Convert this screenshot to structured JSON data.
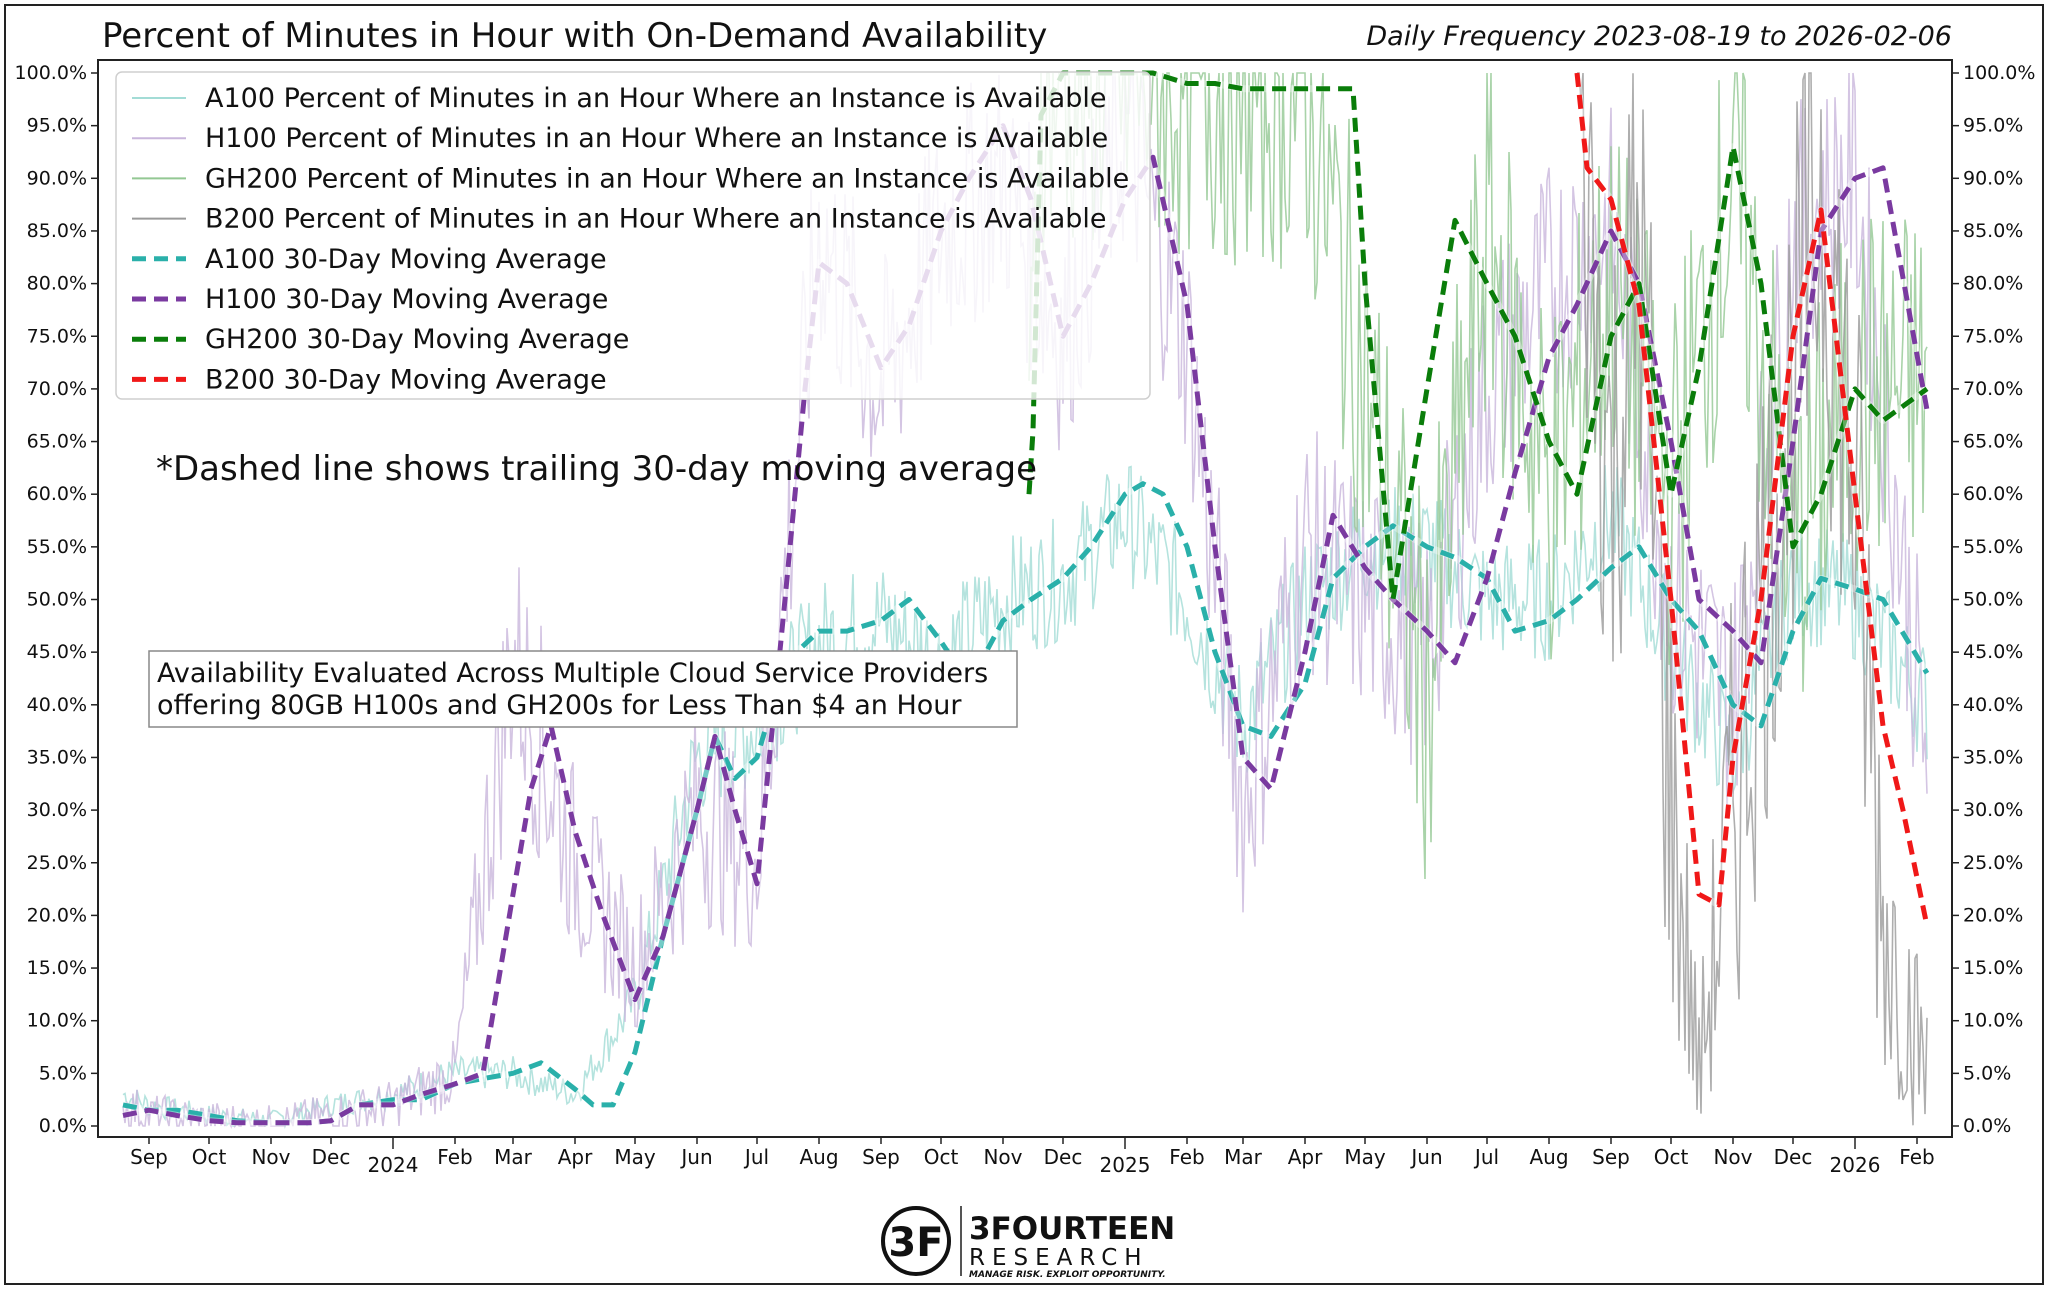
{
  "chart_data": {
    "type": "line",
    "title": "Percent of Minutes in Hour with On-Demand Availability",
    "subtitle": "Daily Frequency 2023-08-19 to 2026-02-06",
    "x_start": "2023-08-19",
    "x_end": "2026-02-06",
    "ylim": [
      0,
      100
    ],
    "grid": false,
    "legend_position": "top-left",
    "y_ticks": [
      "0.0%",
      "5.0%",
      "10.0%",
      "15.0%",
      "20.0%",
      "25.0%",
      "30.0%",
      "35.0%",
      "40.0%",
      "45.0%",
      "50.0%",
      "55.0%",
      "60.0%",
      "65.0%",
      "70.0%",
      "75.0%",
      "80.0%",
      "85.0%",
      "90.0%",
      "95.0%",
      "100.0%"
    ],
    "x_ticks": [
      {
        "label": "Sep",
        "date": "2023-09-01"
      },
      {
        "label": "Oct",
        "date": "2023-10-01"
      },
      {
        "label": "Nov",
        "date": "2023-11-01"
      },
      {
        "label": "Dec",
        "date": "2023-12-01"
      },
      {
        "label": "2024",
        "date": "2024-01-01",
        "major": true
      },
      {
        "label": "Feb",
        "date": "2024-02-01"
      },
      {
        "label": "Mar",
        "date": "2024-03-01"
      },
      {
        "label": "Apr",
        "date": "2024-04-01"
      },
      {
        "label": "May",
        "date": "2024-05-01"
      },
      {
        "label": "Jun",
        "date": "2024-06-01"
      },
      {
        "label": "Jul",
        "date": "2024-07-01"
      },
      {
        "label": "Aug",
        "date": "2024-08-01"
      },
      {
        "label": "Sep",
        "date": "2024-09-01"
      },
      {
        "label": "Oct",
        "date": "2024-10-01"
      },
      {
        "label": "Nov",
        "date": "2024-11-01"
      },
      {
        "label": "Dec",
        "date": "2024-12-01"
      },
      {
        "label": "2025",
        "date": "2025-01-01",
        "major": true
      },
      {
        "label": "Feb",
        "date": "2025-02-01"
      },
      {
        "label": "Mar",
        "date": "2025-03-01"
      },
      {
        "label": "Apr",
        "date": "2025-04-01"
      },
      {
        "label": "May",
        "date": "2025-05-01"
      },
      {
        "label": "Jun",
        "date": "2025-06-01"
      },
      {
        "label": "Jul",
        "date": "2025-07-01"
      },
      {
        "label": "Aug",
        "date": "2025-08-01"
      },
      {
        "label": "Sep",
        "date": "2025-09-01"
      },
      {
        "label": "Oct",
        "date": "2025-10-01"
      },
      {
        "label": "Nov",
        "date": "2025-11-01"
      },
      {
        "label": "Dec",
        "date": "2025-12-01"
      },
      {
        "label": "2026",
        "date": "2026-01-01",
        "major": true
      },
      {
        "label": "Feb",
        "date": "2026-02-01"
      }
    ],
    "series": [
      {
        "name": "A100 Percent of Minutes in an Hour Where an Instance is Available",
        "kind": "daily",
        "color": "#a3dcd6",
        "x": [
          "2023-08-19",
          "2023-09-01",
          "2023-10-01",
          "2023-11-01",
          "2023-12-01",
          "2024-01-01",
          "2024-02-01",
          "2024-03-01",
          "2024-04-01",
          "2024-05-01",
          "2024-06-01",
          "2024-07-01",
          "2024-08-01",
          "2024-09-01",
          "2024-10-01",
          "2024-11-01",
          "2024-12-01",
          "2025-01-01",
          "2025-02-01",
          "2025-03-01",
          "2025-04-01",
          "2025-05-01",
          "2025-06-01",
          "2025-07-01",
          "2025-08-01",
          "2025-09-01",
          "2025-10-01",
          "2025-11-01",
          "2025-12-01",
          "2026-01-01",
          "2026-02-06"
        ],
        "y": [
          3,
          2,
          1,
          0.5,
          2,
          3,
          5,
          5,
          3,
          12,
          35,
          38,
          46,
          48,
          44,
          50,
          52,
          58,
          50,
          38,
          50,
          55,
          55,
          50,
          50,
          58,
          45,
          35,
          52,
          50,
          40
        ]
      },
      {
        "name": "H100 Percent of Minutes in an Hour Where an Instance is Available",
        "kind": "daily",
        "color": "#c9b6dc",
        "x": [
          "2023-08-19",
          "2023-09-01",
          "2023-10-01",
          "2023-11-01",
          "2023-12-01",
          "2024-01-01",
          "2024-02-01",
          "2024-03-01",
          "2024-04-01",
          "2024-05-01",
          "2024-06-01",
          "2024-07-01",
          "2024-08-01",
          "2024-09-01",
          "2024-10-01",
          "2024-11-01",
          "2024-12-01",
          "2025-01-01",
          "2025-02-01",
          "2025-03-01",
          "2025-04-01",
          "2025-05-01",
          "2025-06-01",
          "2025-07-01",
          "2025-08-01",
          "2025-09-01",
          "2025-10-01",
          "2025-11-01",
          "2025-12-01",
          "2026-01-01",
          "2026-02-06"
        ],
        "y": [
          2,
          1,
          0.5,
          0.2,
          1,
          2,
          5,
          45,
          25,
          15,
          30,
          25,
          85,
          70,
          85,
          90,
          75,
          95,
          75,
          30,
          55,
          50,
          45,
          70,
          80,
          85,
          50,
          40,
          85,
          90,
          35
        ]
      },
      {
        "name": "GH200 Percent of Minutes in an Hour Where an Instance is Available",
        "kind": "daily",
        "color": "#93c893",
        "x": [
          "2024-11-14",
          "2024-11-20",
          "2024-12-01",
          "2025-01-01",
          "2025-02-01",
          "2025-03-01",
          "2025-04-01",
          "2025-05-01",
          "2025-06-01",
          "2025-07-01",
          "2025-08-01",
          "2025-09-01",
          "2025-10-01",
          "2025-11-01",
          "2025-12-01",
          "2026-01-01",
          "2026-02-06"
        ],
        "y": [
          60,
          100,
          100,
          100,
          100,
          99,
          99,
          70,
          40,
          85,
          60,
          80,
          60,
          90,
          55,
          70,
          70
        ]
      },
      {
        "name": "B200 Percent of Minutes in an Hour Where an Instance is Available",
        "kind": "daily",
        "color": "#9a9a9a",
        "x": [
          "2025-08-15",
          "2025-09-01",
          "2025-09-15",
          "2025-10-01",
          "2025-10-15",
          "2025-11-01",
          "2025-11-15",
          "2025-12-01",
          "2025-12-15",
          "2026-01-01",
          "2026-01-15",
          "2026-02-06"
        ],
        "y": [
          100,
          60,
          85,
          30,
          5,
          30,
          50,
          70,
          90,
          60,
          20,
          5
        ]
      },
      {
        "name": "A100 30-Day Moving Average",
        "kind": "ma",
        "color": "#2ab0aa",
        "x": [
          "2023-08-19",
          "2023-09-01",
          "2023-09-15",
          "2023-10-01",
          "2023-10-15",
          "2023-11-01",
          "2023-11-20",
          "2023-12-01",
          "2023-12-15",
          "2024-01-01",
          "2024-01-15",
          "2024-02-01",
          "2024-02-15",
          "2024-03-01",
          "2024-03-15",
          "2024-04-01",
          "2024-04-10",
          "2024-04-20",
          "2024-05-01",
          "2024-05-15",
          "2024-06-01",
          "2024-06-10",
          "2024-06-20",
          "2024-07-01",
          "2024-07-15",
          "2024-08-01",
          "2024-08-15",
          "2024-09-01",
          "2024-09-15",
          "2024-10-01",
          "2024-10-15",
          "2024-11-01",
          "2024-11-15",
          "2024-12-01",
          "2024-12-15",
          "2025-01-01",
          "2025-01-10",
          "2025-01-20",
          "2025-02-01",
          "2025-02-15",
          "2025-03-01",
          "2025-03-15",
          "2025-04-01",
          "2025-04-15",
          "2025-05-01",
          "2025-05-15",
          "2025-06-01",
          "2025-06-15",
          "2025-07-01",
          "2025-07-15",
          "2025-08-01",
          "2025-08-15",
          "2025-09-01",
          "2025-09-15",
          "2025-10-01",
          "2025-10-15",
          "2025-11-01",
          "2025-11-15",
          "2025-12-01",
          "2025-12-15",
          "2026-01-01",
          "2026-01-15",
          "2026-02-06"
        ],
        "y": [
          2,
          1.5,
          1.5,
          1,
          0.5,
          0.3,
          0.3,
          0.5,
          2,
          2.5,
          2.5,
          4,
          4.5,
          5,
          6,
          3.5,
          2,
          2,
          7,
          18,
          30,
          37,
          33,
          35,
          44,
          47,
          47,
          48,
          50,
          46,
          42,
          48,
          50,
          52,
          55,
          60,
          61,
          60,
          55,
          45,
          38,
          37,
          42,
          52,
          55,
          57,
          55,
          54,
          52,
          47,
          48,
          50,
          53,
          55,
          50,
          47,
          40,
          38,
          47,
          52,
          51,
          50,
          43
        ]
      },
      {
        "name": "H100 30-Day Moving Average",
        "kind": "ma",
        "color": "#7a3aa0",
        "x": [
          "2023-08-19",
          "2023-09-01",
          "2023-09-15",
          "2023-10-01",
          "2023-10-15",
          "2023-11-01",
          "2023-11-20",
          "2023-12-01",
          "2023-12-15",
          "2024-01-01",
          "2024-01-15",
          "2024-02-01",
          "2024-02-15",
          "2024-03-01",
          "2024-03-10",
          "2024-03-20",
          "2024-04-01",
          "2024-04-15",
          "2024-05-01",
          "2024-05-15",
          "2024-06-01",
          "2024-06-10",
          "2024-06-20",
          "2024-07-01",
          "2024-07-15",
          "2024-07-25",
          "2024-08-01",
          "2024-08-15",
          "2024-09-01",
          "2024-09-15",
          "2024-10-01",
          "2024-10-15",
          "2024-11-01",
          "2024-11-15",
          "2024-12-01",
          "2024-12-15",
          "2025-01-01",
          "2025-01-15",
          "2025-02-01",
          "2025-02-15",
          "2025-03-01",
          "2025-03-15",
          "2025-04-01",
          "2025-04-15",
          "2025-05-01",
          "2025-05-15",
          "2025-06-01",
          "2025-06-15",
          "2025-07-01",
          "2025-07-15",
          "2025-08-01",
          "2025-08-15",
          "2025-09-01",
          "2025-09-15",
          "2025-10-01",
          "2025-10-15",
          "2025-11-01",
          "2025-11-15",
          "2025-12-01",
          "2025-12-15",
          "2026-01-01",
          "2026-01-15",
          "2026-02-06"
        ],
        "y": [
          1,
          1.5,
          1,
          0.5,
          0.3,
          0.3,
          0.3,
          0.5,
          2,
          2,
          3,
          4,
          5,
          22,
          32,
          38,
          28,
          20,
          12,
          18,
          30,
          37,
          30,
          23,
          50,
          70,
          82,
          80,
          72,
          76,
          85,
          90,
          95,
          88,
          75,
          80,
          88,
          92,
          78,
          55,
          35,
          32,
          45,
          58,
          53,
          50,
          47,
          44,
          52,
          62,
          73,
          78,
          85,
          80,
          65,
          50,
          47,
          44,
          65,
          85,
          90,
          91,
          68
        ]
      },
      {
        "name": "GH200 30-Day Moving Average",
        "kind": "ma",
        "color": "#0a7d0a",
        "x": [
          "2024-11-14",
          "2024-11-16",
          "2024-11-20",
          "2024-12-01",
          "2024-12-15",
          "2025-01-01",
          "2025-01-15",
          "2025-02-01",
          "2025-02-15",
          "2025-03-01",
          "2025-03-15",
          "2025-04-01",
          "2025-04-15",
          "2025-04-25",
          "2025-05-01",
          "2025-05-15",
          "2025-06-01",
          "2025-06-15",
          "2025-07-01",
          "2025-07-15",
          "2025-08-01",
          "2025-08-15",
          "2025-09-01",
          "2025-09-15",
          "2025-10-01",
          "2025-10-15",
          "2025-11-01",
          "2025-11-15",
          "2025-12-01",
          "2025-12-15",
          "2026-01-01",
          "2026-01-15",
          "2026-02-06"
        ],
        "y": [
          60,
          66,
          96,
          100,
          100,
          100,
          100,
          99,
          99,
          98.5,
          98.5,
          98.5,
          98.5,
          98.5,
          80,
          50,
          70,
          86,
          80,
          75,
          65,
          60,
          75,
          80,
          60,
          72,
          93,
          80,
          55,
          60,
          70,
          67,
          70
        ]
      },
      {
        "name": "B200 30-Day Moving Average",
        "kind": "ma",
        "color": "#f01818",
        "x": [
          "2025-08-15",
          "2025-08-20",
          "2025-09-01",
          "2025-09-15",
          "2025-10-01",
          "2025-10-15",
          "2025-10-25",
          "2025-11-01",
          "2025-11-15",
          "2025-12-01",
          "2025-12-15",
          "2026-01-01",
          "2026-01-15",
          "2026-01-25",
          "2026-02-06"
        ],
        "y": [
          100,
          91,
          88,
          78,
          50,
          22,
          21,
          35,
          50,
          75,
          87,
          60,
          38,
          30,
          19
        ]
      }
    ]
  },
  "annotation_main": "*Dashed line shows trailing 30-day moving average",
  "annotation_box": [
    "Availability Evaluated Across Multiple Cloud Service Providers",
    "offering 80GB H100s and GH200s for Less Than $4 an Hour"
  ],
  "logo": {
    "monogram": "3F",
    "name": "3FOURTEEN",
    "sub": "RESEARCH",
    "tagline": "MANAGE RISK. EXPLOIT OPPORTUNITY."
  }
}
